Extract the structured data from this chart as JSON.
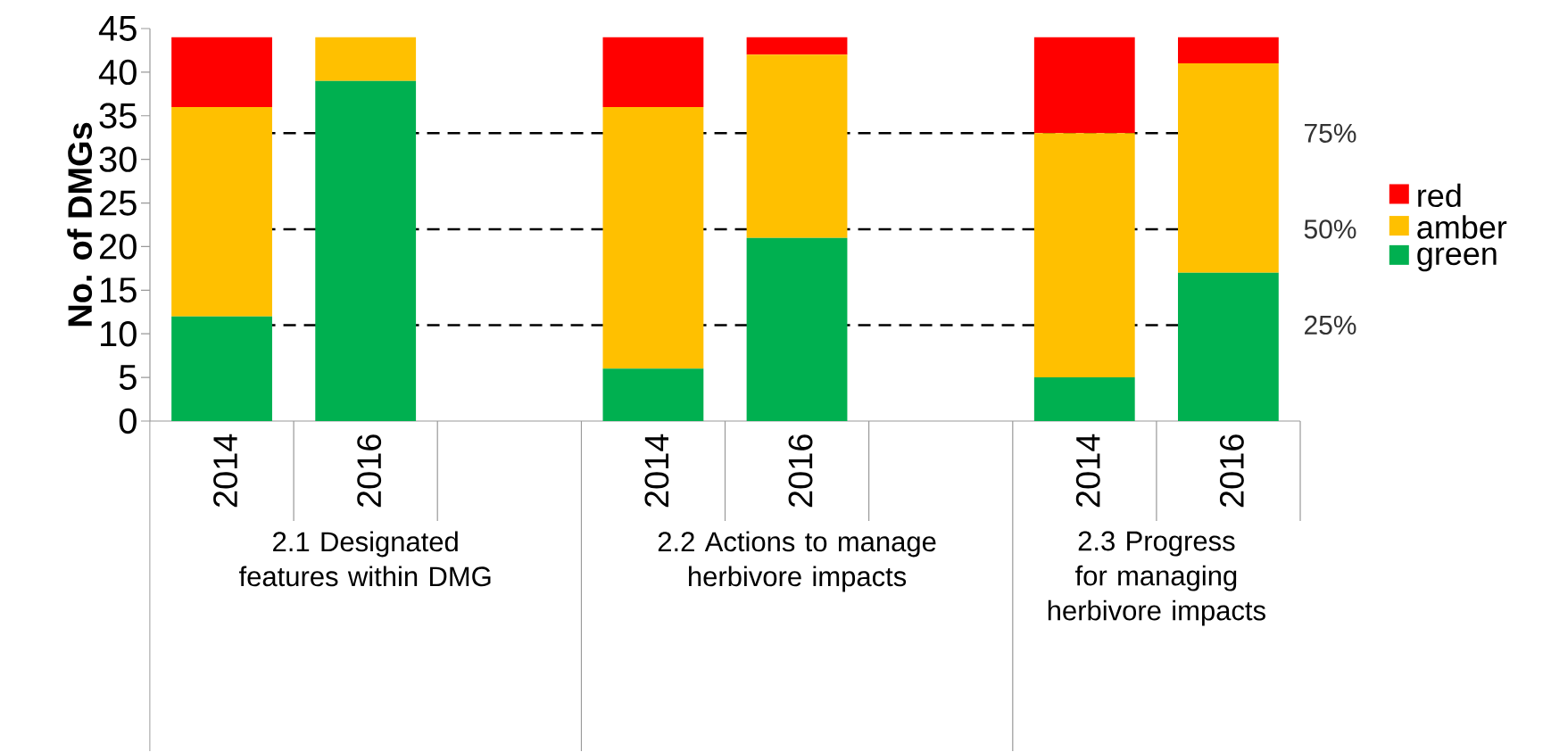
{
  "chart_data": {
    "type": "bar",
    "stacked": true,
    "ylabel": "No. of DMGs",
    "categories": [
      "2014",
      "2016",
      null,
      "2014",
      "2016",
      null,
      "2014",
      "2016"
    ],
    "series": [
      {
        "name": "green",
        "color": "#00b050",
        "values": [
          12,
          39,
          null,
          6,
          21,
          null,
          5,
          17
        ]
      },
      {
        "name": "amber",
        "color": "#ffc000",
        "values": [
          24,
          5,
          null,
          30,
          21,
          null,
          28,
          24
        ]
      },
      {
        "name": "red",
        "color": "#ff0000",
        "values": [
          8,
          0,
          null,
          8,
          2,
          null,
          11,
          3
        ]
      }
    ],
    "ylim": [
      0,
      45
    ],
    "yticks": [
      0,
      5,
      10,
      15,
      20,
      25,
      30,
      35,
      40,
      45
    ],
    "ref_lines": [
      {
        "axis": "y",
        "value": 33,
        "color": "#000000",
        "line_style": "dashed"
      },
      {
        "axis": "y",
        "value": 22,
        "color": "#000000",
        "line_style": "dashed"
      },
      {
        "axis": "y",
        "value": 11,
        "color": "#000000",
        "line_style": "dashed"
      }
    ],
    "annotations": [
      "2.1 Designated features within DMG",
      "2.2 Actions to manage herbivore impacts",
      "2.3 Progress for managing herbivore impacts",
      "75%",
      "50%",
      "25%"
    ],
    "legend": "right"
  }
}
